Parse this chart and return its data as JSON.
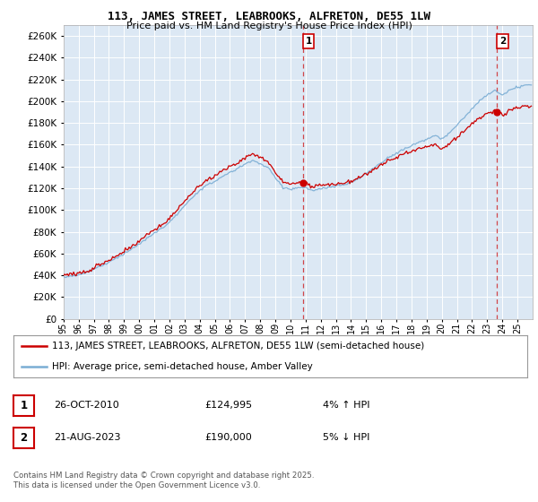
{
  "title": "113, JAMES STREET, LEABROOKS, ALFRETON, DE55 1LW",
  "subtitle": "Price paid vs. HM Land Registry's House Price Index (HPI)",
  "legend_line1": "113, JAMES STREET, LEABROOKS, ALFRETON, DE55 1LW (semi-detached house)",
  "legend_line2": "HPI: Average price, semi-detached house, Amber Valley",
  "annotation1_date": "26-OCT-2010",
  "annotation1_price": "£124,995",
  "annotation1_hpi": "4% ↑ HPI",
  "annotation2_date": "21-AUG-2023",
  "annotation2_price": "£190,000",
  "annotation2_hpi": "5% ↓ HPI",
  "footer": "Contains HM Land Registry data © Crown copyright and database right 2025.\nThis data is licensed under the Open Government Licence v3.0.",
  "hpi_color": "#7aadd4",
  "price_color": "#cc0000",
  "dashed_line_color": "#cc0000",
  "plot_bg": "#dce8f4",
  "ylim": [
    0,
    270000
  ],
  "yticks": [
    0,
    20000,
    40000,
    60000,
    80000,
    100000,
    120000,
    140000,
    160000,
    180000,
    200000,
    220000,
    240000,
    260000
  ],
  "sale1_year": 2010.82,
  "sale1_price": 124995,
  "sale2_year": 2023.64,
  "sale2_price": 190000,
  "xlim_left": 1995.3,
  "xlim_right": 2026.0
}
